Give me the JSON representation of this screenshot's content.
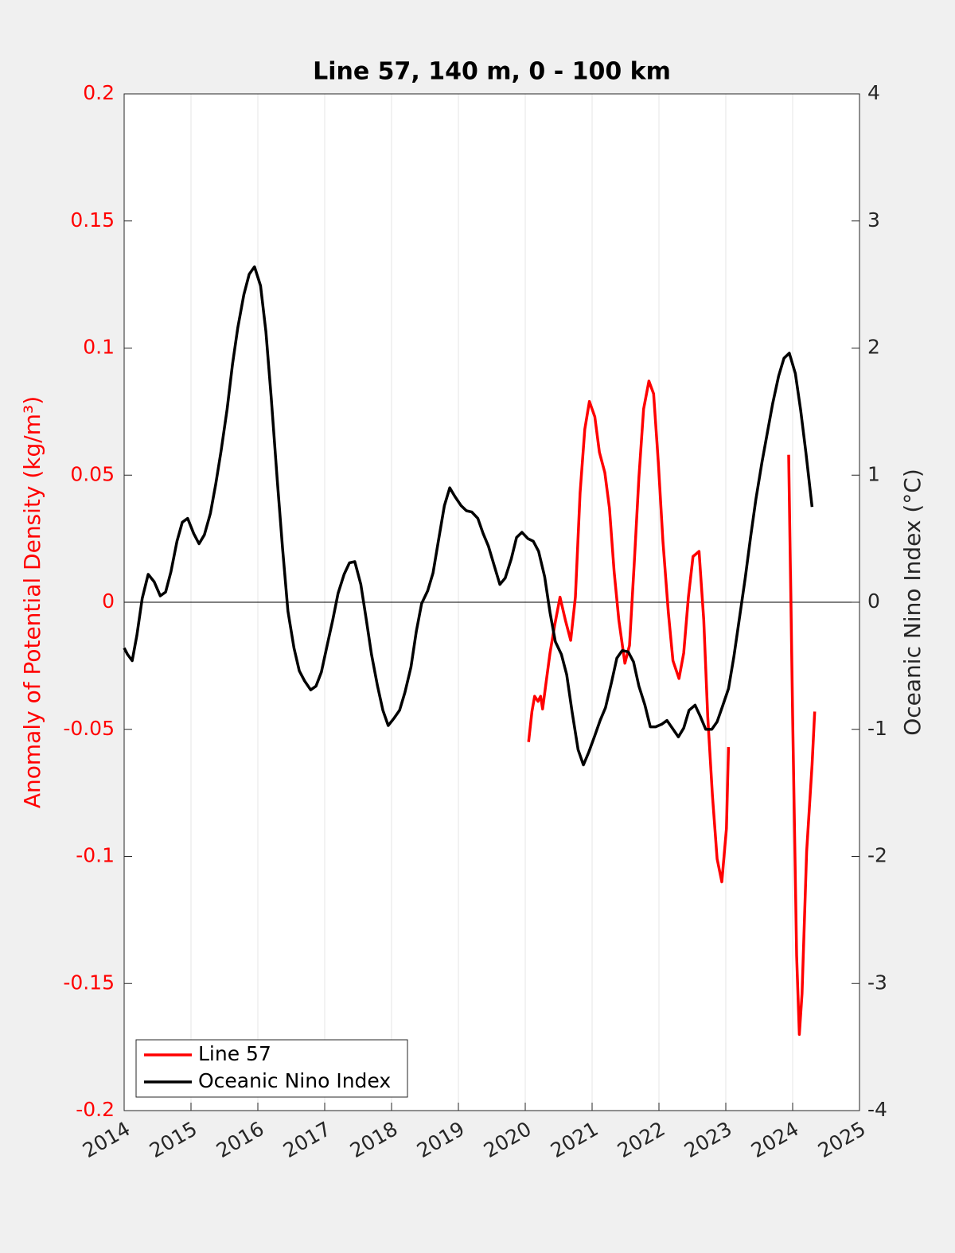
{
  "chart_data": {
    "type": "line",
    "title": "Line 57, 140 m, 0 - 100 km",
    "ylabel": "Anomaly of Potential Density (kg/m³)",
    "y2label": "Oceanic Nino Index (°C)",
    "xlim": [
      2014,
      2025
    ],
    "xticks": [
      2014,
      2015,
      2016,
      2017,
      2018,
      2019,
      2020,
      2021,
      2022,
      2023,
      2024,
      2025
    ],
    "ylim": [
      -0.2,
      0.2
    ],
    "yticks": [
      -0.2,
      -0.15,
      -0.1,
      -0.05,
      0,
      0.05,
      0.1,
      0.15,
      0.2
    ],
    "y2lim": [
      -4,
      4
    ],
    "y2ticks": [
      -4,
      -3,
      -2,
      -1,
      0,
      1,
      2,
      3,
      4
    ],
    "grid": "x",
    "zeroline": true,
    "ylabel_color": "#ff0000",
    "legend": "lower left",
    "series": [
      {
        "name": "Line 57",
        "color": "#ff0000",
        "x": [
          2020.05,
          2020.1,
          2020.14,
          2020.19,
          2020.23,
          2020.26,
          2020.31,
          2020.37,
          2020.44,
          2020.52,
          2020.6,
          2020.68,
          2020.75,
          2020.82,
          2020.89,
          2020.96,
          2021.04,
          2021.11,
          2021.19,
          2021.26,
          2021.33,
          2021.4,
          2021.49,
          2021.56,
          2021.63,
          2021.7,
          2021.77,
          2021.85,
          2021.92,
          2021.99,
          2022.06,
          2022.14,
          2022.21,
          2022.3,
          2022.37,
          2022.44,
          2022.51,
          2022.6,
          2022.67,
          2022.73,
          2022.8,
          2022.87,
          2022.94,
          2023.01,
          2023.04,
          null,
          2023.94,
          2024.0,
          2024.06,
          2024.1,
          2024.14,
          2024.21,
          2024.29,
          2024.33
        ],
        "values": [
          -0.055,
          -0.043,
          -0.037,
          -0.039,
          -0.037,
          -0.042,
          -0.032,
          -0.02,
          -0.009,
          0.002,
          -0.007,
          -0.015,
          0.002,
          0.043,
          0.068,
          0.079,
          0.073,
          0.059,
          0.051,
          0.037,
          0.012,
          -0.007,
          -0.024,
          -0.017,
          0.015,
          0.049,
          0.076,
          0.087,
          0.082,
          0.055,
          0.024,
          -0.004,
          -0.023,
          -0.03,
          -0.02,
          0.002,
          0.018,
          0.02,
          -0.007,
          -0.045,
          -0.076,
          -0.101,
          -0.11,
          -0.089,
          -0.057,
          null,
          0.058,
          -0.045,
          -0.139,
          -0.17,
          -0.154,
          -0.098,
          -0.064,
          -0.043
        ]
      },
      {
        "name": "Oceanic Nino Index",
        "color": "#000000",
        "axis": "y2",
        "x": [
          2014.0,
          2014.05,
          2014.12,
          2014.19,
          2014.27,
          2014.36,
          2014.45,
          2014.54,
          2014.62,
          2014.7,
          2014.79,
          2014.87,
          2014.95,
          2015.04,
          2015.12,
          2015.2,
          2015.29,
          2015.37,
          2015.45,
          2015.54,
          2015.62,
          2015.7,
          2015.79,
          2015.87,
          2015.95,
          2016.04,
          2016.12,
          2016.2,
          2016.29,
          2016.37,
          2016.45,
          2016.54,
          2016.62,
          2016.7,
          2016.79,
          2016.87,
          2016.95,
          2017.04,
          2017.12,
          2017.2,
          2017.29,
          2017.37,
          2017.45,
          2017.54,
          2017.62,
          2017.7,
          2017.79,
          2017.87,
          2017.95,
          2018.04,
          2018.12,
          2018.2,
          2018.29,
          2018.37,
          2018.45,
          2018.54,
          2018.62,
          2018.7,
          2018.79,
          2018.87,
          2018.95,
          2019.04,
          2019.12,
          2019.2,
          2019.29,
          2019.37,
          2019.45,
          2019.54,
          2019.62,
          2019.7,
          2019.79,
          2019.87,
          2019.95,
          2020.04,
          2020.12,
          2020.2,
          2020.29,
          2020.37,
          2020.45,
          2020.54,
          2020.62,
          2020.7,
          2020.79,
          2020.87,
          2020.95,
          2021.04,
          2021.12,
          2021.2,
          2021.29,
          2021.37,
          2021.45,
          2021.54,
          2021.62,
          2021.7,
          2021.79,
          2021.87,
          2021.95,
          2022.04,
          2022.12,
          2022.2,
          2022.29,
          2022.37,
          2022.45,
          2022.54,
          2022.62,
          2022.7,
          2022.79,
          2022.87,
          2022.95,
          2023.04,
          2023.12,
          2023.2,
          2023.29,
          2023.37,
          2023.45,
          2023.54,
          2023.62,
          2023.7,
          2023.79,
          2023.87,
          2023.95,
          2024.04,
          2024.12,
          2024.2,
          2024.29
        ],
        "values": [
          -0.36,
          -0.41,
          -0.46,
          -0.26,
          0.03,
          0.22,
          0.16,
          0.05,
          0.08,
          0.24,
          0.48,
          0.63,
          0.66,
          0.54,
          0.46,
          0.53,
          0.7,
          0.93,
          1.19,
          1.52,
          1.87,
          2.16,
          2.42,
          2.58,
          2.64,
          2.49,
          2.13,
          1.61,
          0.96,
          0.42,
          -0.07,
          -0.36,
          -0.54,
          -0.62,
          -0.69,
          -0.66,
          -0.55,
          -0.33,
          -0.14,
          0.07,
          0.22,
          0.31,
          0.32,
          0.14,
          -0.13,
          -0.41,
          -0.66,
          -0.85,
          -0.97,
          -0.91,
          -0.85,
          -0.71,
          -0.51,
          -0.23,
          -0.01,
          0.09,
          0.23,
          0.48,
          0.76,
          0.9,
          0.83,
          0.76,
          0.72,
          0.71,
          0.66,
          0.54,
          0.44,
          0.28,
          0.14,
          0.19,
          0.34,
          0.51,
          0.55,
          0.5,
          0.48,
          0.4,
          0.2,
          -0.08,
          -0.31,
          -0.41,
          -0.57,
          -0.86,
          -1.16,
          -1.28,
          -1.18,
          -1.05,
          -0.93,
          -0.83,
          -0.63,
          -0.44,
          -0.38,
          -0.39,
          -0.47,
          -0.66,
          -0.81,
          -0.98,
          -0.98,
          -0.96,
          -0.93,
          -0.99,
          -1.06,
          -0.99,
          -0.85,
          -0.81,
          -0.9,
          -1.0,
          -1.0,
          -0.94,
          -0.82,
          -0.68,
          -0.43,
          -0.14,
          0.19,
          0.51,
          0.81,
          1.1,
          1.33,
          1.56,
          1.78,
          1.92,
          1.96,
          1.8,
          1.51,
          1.17,
          0.75
        ]
      }
    ]
  }
}
